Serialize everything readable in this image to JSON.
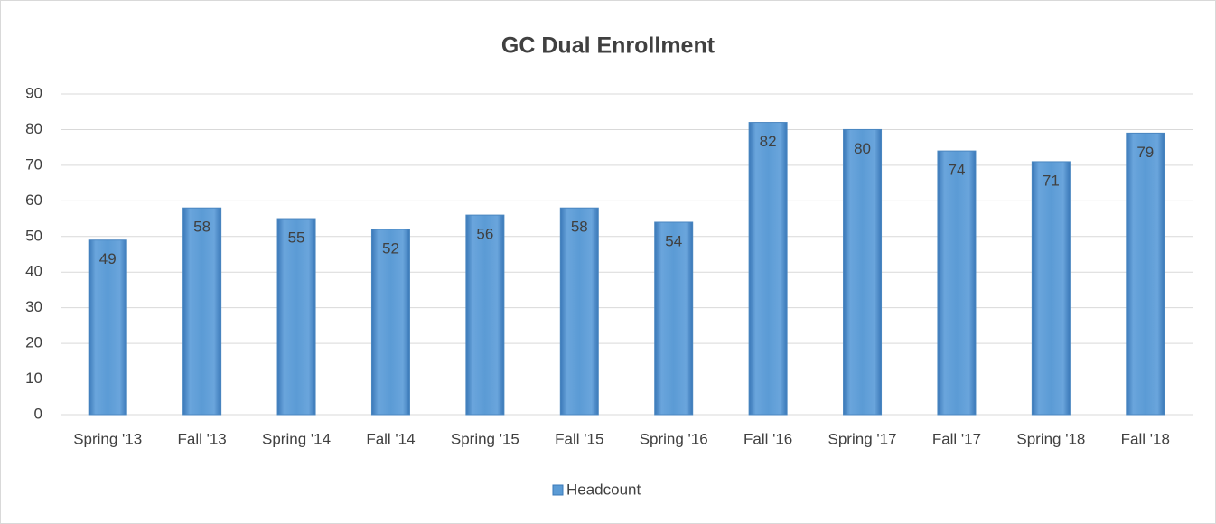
{
  "chart_data": {
    "type": "bar",
    "title": "GC Dual Enrollment",
    "categories": [
      "Spring '13",
      "Fall '13",
      "Spring '14",
      "Fall '14",
      "Spring '15",
      "Fall '15",
      "Spring '16",
      "Fall '16",
      "Spring '17",
      "Fall '17",
      "Spring '18",
      "Fall '18"
    ],
    "series": [
      {
        "name": "Headcount",
        "color": "#5b9bd5",
        "values": [
          49,
          58,
          55,
          52,
          56,
          58,
          54,
          82,
          80,
          74,
          71,
          79
        ]
      }
    ],
    "ylim": [
      0,
      90
    ],
    "yticks": [
      0,
      10,
      20,
      30,
      40,
      50,
      60,
      70,
      80,
      90
    ],
    "grid": true,
    "legend": "bottom"
  }
}
